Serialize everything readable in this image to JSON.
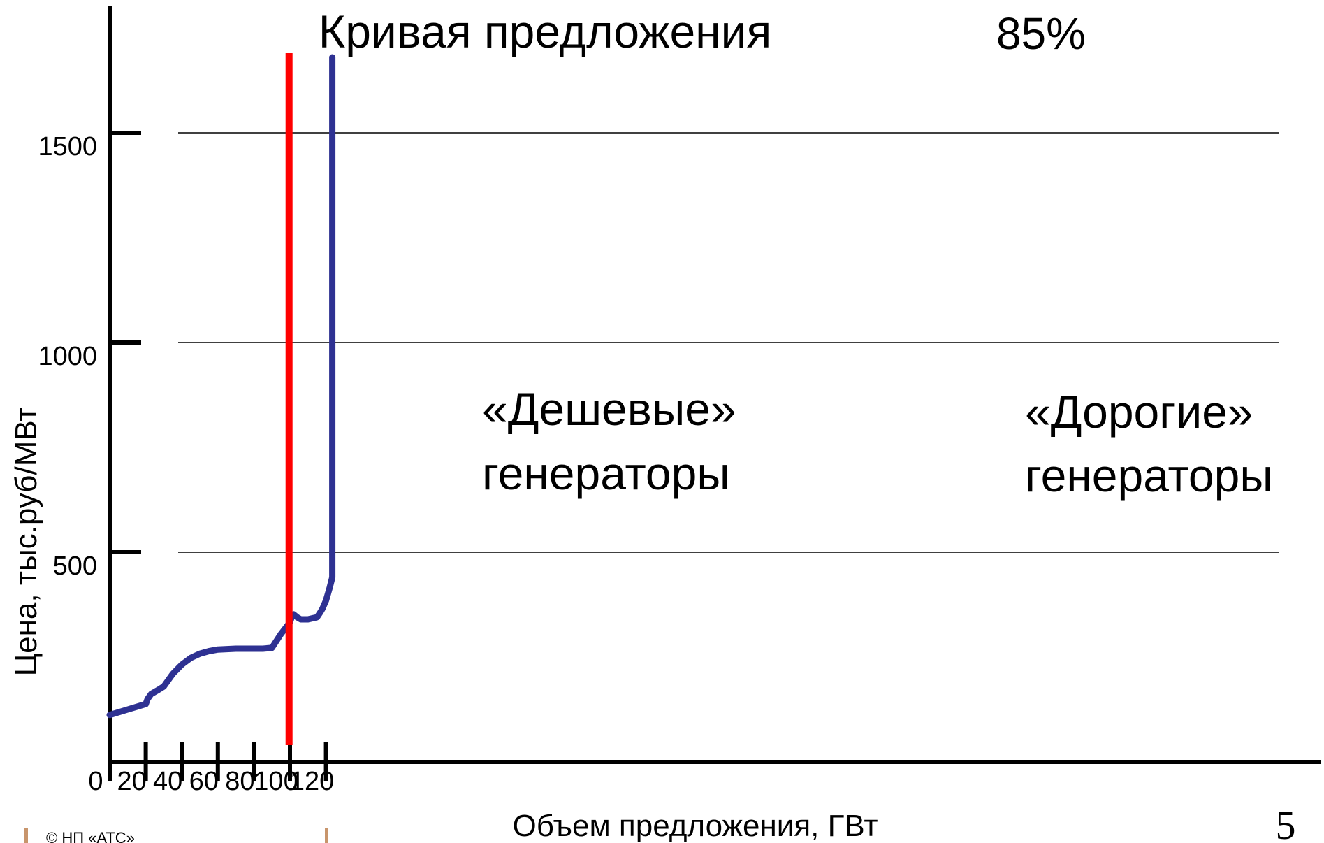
{
  "chart_data": {
    "type": "line",
    "title": "Кривая предложения",
    "xlabel": "Объем предложения, ГВт",
    "ylabel": "Цена, тыс.руб/МВт",
    "xlim": [
      0,
      132
    ],
    "ylim": [
      0,
      1650
    ],
    "x_ticks": [
      0,
      20,
      40,
      60,
      80,
      100,
      120
    ],
    "y_ticks": [
      500,
      1000,
      1500
    ],
    "y_gridlines": [
      500,
      1000,
      1500
    ],
    "series": [
      {
        "color": "#2e3192",
        "x": [
          0,
          10,
          20,
          21,
          23,
          27,
          30,
          35,
          40,
          45,
          50,
          55,
          60,
          70,
          80,
          85,
          90,
          95,
          100,
          101,
          102,
          104,
          106,
          110,
          115,
          117,
          118,
          120,
          122,
          123.5,
          123.5,
          123.5
        ],
        "y": [
          112,
          125,
          138,
          150,
          162,
          172,
          180,
          210,
          232,
          248,
          258,
          264,
          268,
          270,
          270,
          270,
          272,
          305,
          333,
          346,
          352,
          345,
          340,
          340,
          345,
          358,
          365,
          385,
          415,
          440,
          900,
          1680
        ]
      }
    ],
    "vertical_marker": {
      "x": 99.5,
      "label": "85%",
      "color": "#ff0000",
      "y_range": [
        40,
        1690
      ]
    },
    "annotations": [
      {
        "text_lines": [
          "«Дешевые»",
          "генераторы"
        ]
      },
      {
        "text_lines": [
          "«Дорогие»",
          "генераторы"
        ]
      }
    ],
    "grid": true,
    "legend": "none"
  },
  "footer": {
    "copyright": "© НП «АТС»",
    "page_number": "5"
  }
}
